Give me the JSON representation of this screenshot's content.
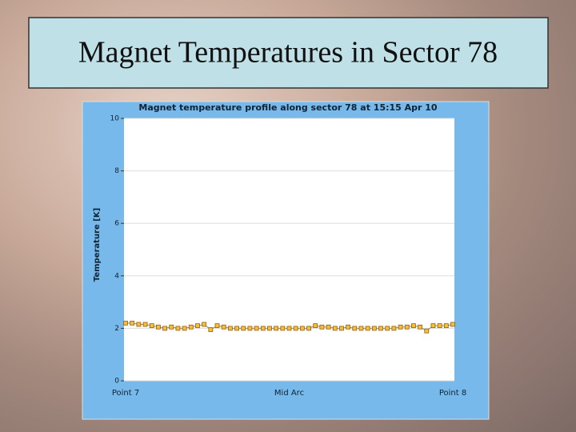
{
  "slide_title": "Magnet Temperatures in Sector 78",
  "chart_data": {
    "type": "line",
    "title": "Magnet temperature profile along sector 78 at 15:15 Apr 10",
    "y_label": "Temperature [K]",
    "x": [
      0,
      2,
      4,
      6,
      8,
      10,
      12,
      14,
      16,
      18,
      20,
      22,
      24,
      26,
      28,
      30,
      32,
      34,
      36,
      38,
      40,
      42,
      44,
      46,
      48,
      50,
      52,
      54,
      56,
      58,
      60,
      62,
      64,
      66,
      68,
      70,
      72,
      74,
      76,
      78,
      80,
      82,
      84,
      86,
      88,
      90,
      92,
      94,
      96,
      98,
      100
    ],
    "values": [
      2.2,
      2.2,
      2.15,
      2.15,
      2.1,
      2.05,
      2.0,
      2.05,
      2.0,
      2.0,
      2.05,
      2.1,
      2.15,
      1.95,
      2.1,
      2.05,
      2.0,
      2.0,
      2.0,
      2.0,
      2.0,
      2.0,
      2.0,
      2.0,
      2.0,
      2.0,
      2.0,
      2.0,
      2.0,
      2.1,
      2.05,
      2.05,
      2.0,
      2.0,
      2.05,
      2.0,
      2.0,
      2.0,
      2.0,
      2.0,
      2.0,
      2.0,
      2.05,
      2.05,
      2.1,
      2.05,
      1.9,
      2.1,
      2.1,
      2.1,
      2.15
    ],
    "color": "#f2c230",
    "edge_color": "#9a5a1a",
    "xlim": [
      0,
      100
    ],
    "xticks": [
      {
        "value": 0,
        "label": "Point 7"
      },
      {
        "value": 50,
        "label": "Mid Arc"
      },
      {
        "value": 100,
        "label": "Point 8"
      }
    ],
    "ylim": [
      0,
      10
    ],
    "yticks": [
      0,
      2,
      4,
      6,
      8,
      10
    ],
    "grid": true
  }
}
